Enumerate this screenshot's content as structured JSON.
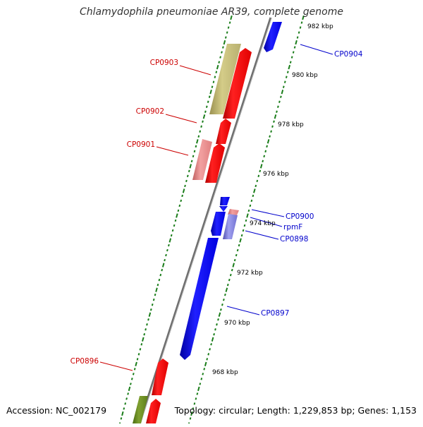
{
  "title": "Chlamydophila pneumoniae AR39, complete genome",
  "accession_label": "Accession: NC_002179",
  "topology_label": "Topology: circular; Length: 1,229,853 bp; Genes: 1,153",
  "colors": {
    "backbone": "#888888",
    "tick_green": "#1a7d1a",
    "gene_forward": "#ff0000",
    "gene_forward_light": "#e88080",
    "gene_olive": "#c0b870",
    "gene_green": "#6b8e23",
    "gene_reverse": "#0000ff",
    "gene_reverse_light": "#8080e0",
    "label_forward": "#cc0000",
    "label_reverse": "#0000cc"
  },
  "kbp_labels": [
    {
      "kbp": 982,
      "text": "982 kbp"
    },
    {
      "kbp": 980,
      "text": "980 kbp"
    },
    {
      "kbp": 978,
      "text": "978 kbp"
    },
    {
      "kbp": 976,
      "text": "976 kbp"
    },
    {
      "kbp": 974,
      "text": "974 kbp"
    },
    {
      "kbp": 972,
      "text": "972 kbp"
    },
    {
      "kbp": 970,
      "text": "970 kbp"
    },
    {
      "kbp": 968,
      "text": "968 kbp"
    }
  ],
  "gene_labels": [
    {
      "name": "CP0904",
      "strand": "reverse"
    },
    {
      "name": "CP0903",
      "strand": "forward"
    },
    {
      "name": "CP0902",
      "strand": "forward"
    },
    {
      "name": "CP0901",
      "strand": "forward"
    },
    {
      "name": "CP0900",
      "strand": "reverse"
    },
    {
      "name": "rpmF",
      "strand": "reverse"
    },
    {
      "name": "CP0898",
      "strand": "reverse"
    },
    {
      "name": "CP0897",
      "strand": "reverse"
    },
    {
      "name": "CP0896",
      "strand": "forward"
    }
  ]
}
